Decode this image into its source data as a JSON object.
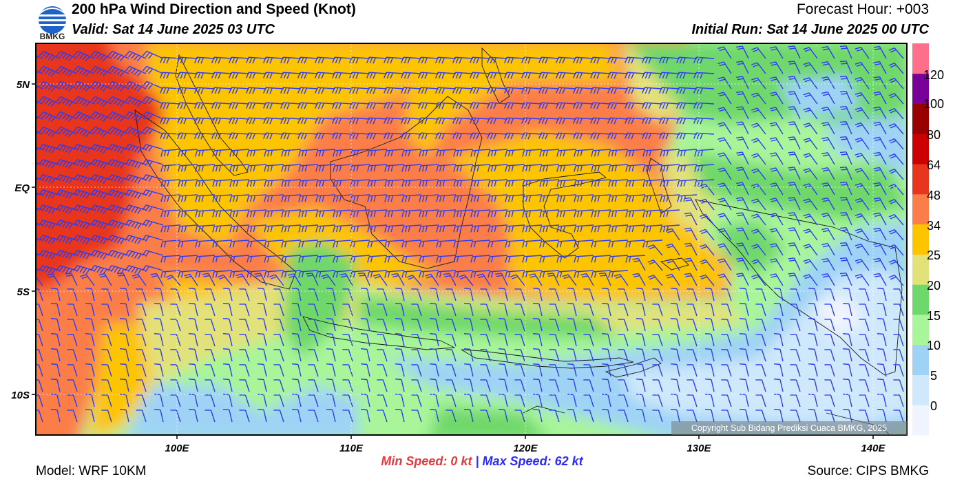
{
  "header": {
    "title": "200 hPa Wind Direction and Speed (Knot)",
    "valid": "Valid: Sat 14 June 2025 03 UTC",
    "forecast_hour": "Forecast Hour: +003",
    "initial_run": "Initial Run: Sat 14 June 2025 00 UTC",
    "logo_text": "BMKG"
  },
  "map": {
    "lat_labels": [
      "5N",
      "EQ",
      "5S",
      "10S"
    ],
    "lon_labels": [
      "100E",
      "110E",
      "120E",
      "130E",
      "140E"
    ],
    "copyright": "Copyright Sub Bidang Prediksi Cuaca BMKG, 2025"
  },
  "colorbar": {
    "labels": [
      "120",
      "100",
      "80",
      "64",
      "48",
      "34",
      "25",
      "20",
      "15",
      "10",
      "5",
      "0"
    ],
    "colors": [
      "#f0f4ff",
      "#cfe8fb",
      "#9fd3f5",
      "#a8f59a",
      "#6fd86a",
      "#e3e17a",
      "#fdc400",
      "#fb7e4a",
      "#e8351e",
      "#cc0000",
      "#990000",
      "#7a009a",
      "#fd6f8a"
    ]
  },
  "footer": {
    "min_label": "Min Speed:",
    "min_value": "0 kt",
    "separator": "|",
    "max_label": "Max Speed:",
    "max_value": "62 kt",
    "model": "Model: WRF 10KM",
    "source": "Source: CIPS BMKG"
  },
  "barb_color": "#2d3cf0"
}
